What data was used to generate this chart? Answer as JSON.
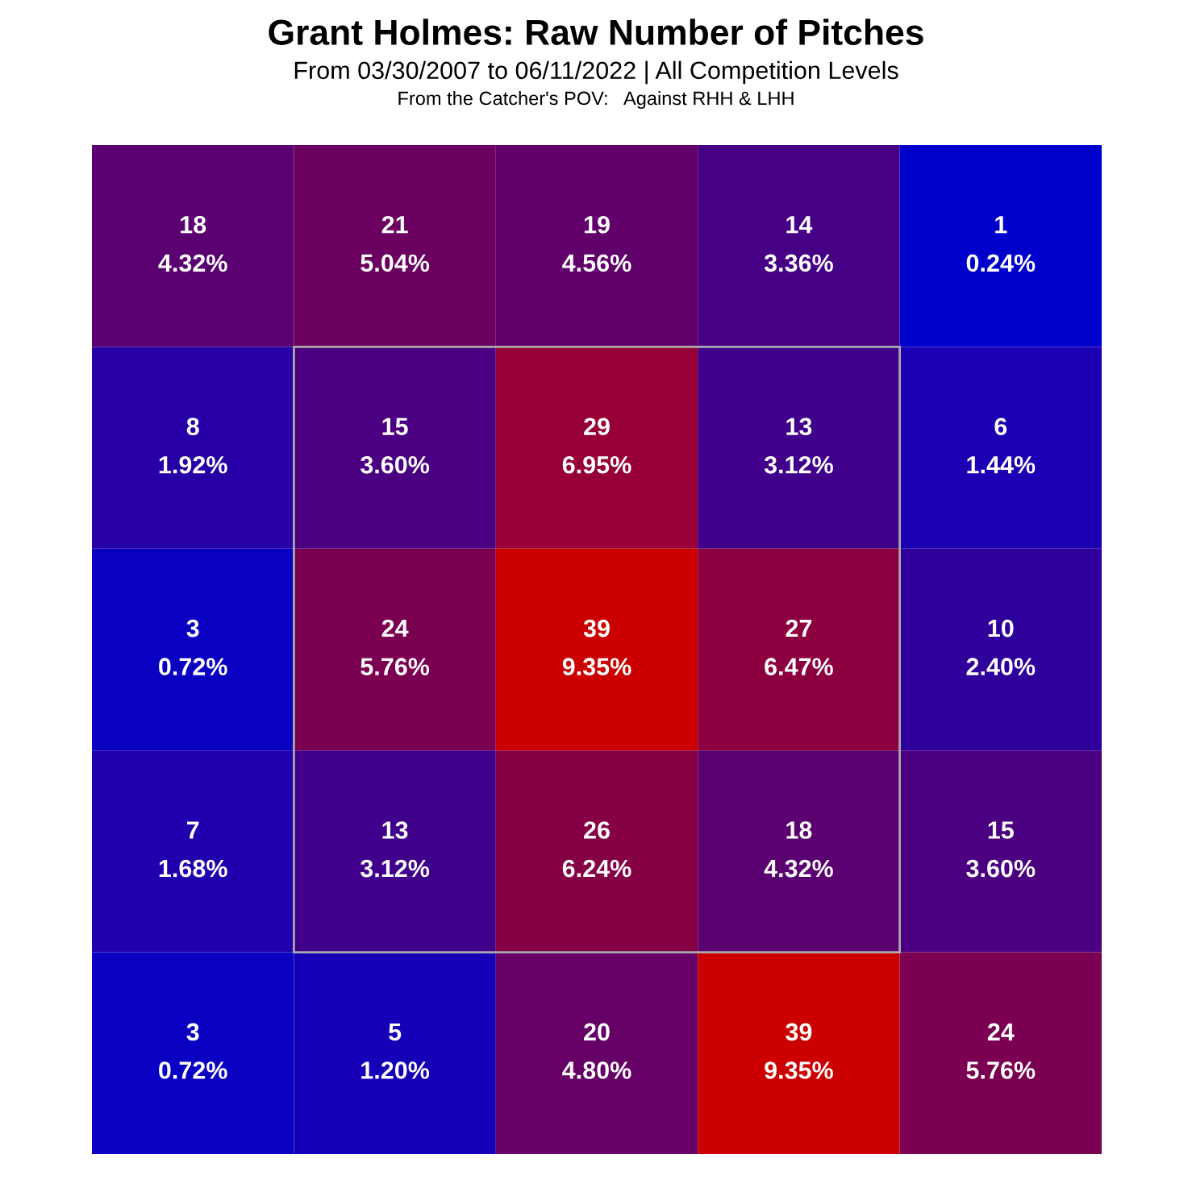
{
  "chart_data": {
    "type": "heatmap",
    "title": "Grant Holmes: Raw Number of Pitches",
    "subtitle": "From 03/30/2007 to 06/11/2022 | All Competition Levels",
    "annotations": [
      "From the Catcher's POV:   Against RHH & LHH",
      "4.32%",
      "5.04%",
      "4.56%",
      "3.36%",
      "0.24%",
      "1.92%",
      "3.60%",
      "6.95%",
      "3.12%",
      "1.44%",
      "0.72%",
      "5.76%",
      "9.35%",
      "6.47%",
      "2.40%",
      "1.68%",
      "3.12%",
      "6.24%",
      "4.32%",
      "3.60%",
      "0.72%",
      "1.20%",
      "4.80%",
      "9.35%",
      "5.76%"
    ],
    "categories": [
      null,
      null,
      null,
      null,
      null
    ],
    "y_categories": [
      null,
      null,
      null,
      null,
      null
    ],
    "cells": [
      [
        18,
        21,
        19,
        14,
        1
      ],
      [
        8,
        15,
        29,
        13,
        6
      ],
      [
        3,
        24,
        39,
        27,
        10
      ],
      [
        7,
        13,
        26,
        18,
        15
      ],
      [
        3,
        5,
        20,
        39,
        24
      ]
    ],
    "colors": [
      "#0000cc",
      "#cc0000"
    ],
    "data_labels": true
  }
}
